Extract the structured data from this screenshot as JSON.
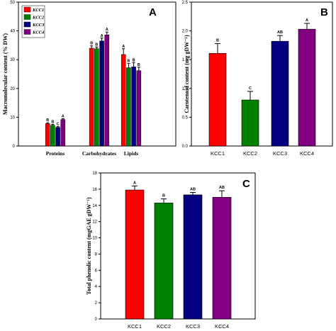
{
  "colors": {
    "KCC1": "#ff0000",
    "KCC2": "#008000",
    "KCC3": "#000080",
    "KCC4": "#800080"
  },
  "chart_data": [
    {
      "panel": "A",
      "type": "bar",
      "ylabel": "Macromolecular content (% DW)",
      "ylim": [
        0,
        50
      ],
      "yticks": [
        "0",
        "10",
        "20",
        "30",
        "40",
        "50"
      ],
      "categories": [
        "Proteins",
        "Carbohydrates",
        "Lipids"
      ],
      "legend": [
        "KCC1",
        "KCC2",
        "KCC3",
        "KCC4"
      ],
      "legend_position": "top-left",
      "series": [
        {
          "name": "KCC1",
          "values": [
            7.8,
            34.0,
            31.8
          ],
          "errors": [
            0.3,
            0.8,
            2.0
          ],
          "letters": [
            "B",
            "B",
            "A"
          ]
        },
        {
          "name": "KCC2",
          "values": [
            7.2,
            33.8,
            27.2
          ],
          "errors": [
            0.3,
            0.6,
            1.5
          ],
          "letters": [
            "B",
            "B",
            "B"
          ]
        },
        {
          "name": "KCC3",
          "values": [
            6.5,
            36.5,
            27.5
          ],
          "errors": [
            0.3,
            1.0,
            1.5
          ],
          "letters": [
            "C",
            "A",
            "B"
          ]
        },
        {
          "name": "KCC4",
          "values": [
            9.2,
            38.6,
            26.2
          ],
          "errors": [
            0.3,
            1.0,
            1.2
          ],
          "letters": [
            "A",
            "A",
            "B"
          ]
        }
      ]
    },
    {
      "panel": "B",
      "type": "bar",
      "ylabel": "Carotenoid content (mg gDW⁻¹)",
      "ylim": [
        0,
        2.5
      ],
      "yticks": [
        "0.0",
        "0.5",
        "1.0",
        "1.5",
        "2.0",
        "2.5"
      ],
      "categories": [
        "KCC1",
        "KCC2",
        "KCC3",
        "KCC4"
      ],
      "values": [
        1.61,
        0.8,
        1.82,
        2.03
      ],
      "errors": [
        0.17,
        0.15,
        0.1,
        0.1
      ],
      "letters": [
        "B",
        "C",
        "AB",
        "A"
      ]
    },
    {
      "panel": "C",
      "type": "bar",
      "ylabel": "Total phenolic content (mgGAE gDW⁻¹)",
      "ylim": [
        0,
        18
      ],
      "yticks": [
        "0",
        "2",
        "4",
        "6",
        "8",
        "10",
        "12",
        "14",
        "16",
        "18"
      ],
      "categories": [
        "KCC1",
        "KCC2",
        "KCC3",
        "KCC4"
      ],
      "values": [
        15.9,
        14.3,
        15.3,
        15.0
      ],
      "errors": [
        0.5,
        0.5,
        0.3,
        0.8
      ],
      "letters": [
        "A",
        "B",
        "AB",
        "AB"
      ]
    }
  ]
}
